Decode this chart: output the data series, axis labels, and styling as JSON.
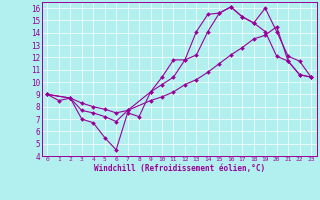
{
  "xlabel": "Windchill (Refroidissement éolien,°C)",
  "xlim": [
    -0.5,
    23.5
  ],
  "ylim": [
    4,
    16.5
  ],
  "xticks": [
    0,
    1,
    2,
    3,
    4,
    5,
    6,
    7,
    8,
    9,
    10,
    11,
    12,
    13,
    14,
    15,
    16,
    17,
    18,
    19,
    20,
    21,
    22,
    23
  ],
  "yticks": [
    4,
    5,
    6,
    7,
    8,
    9,
    10,
    11,
    12,
    13,
    14,
    15,
    16
  ],
  "background_color": "#b2f0f0",
  "line_color": "#990099",
  "line1_x": [
    0,
    1,
    2,
    3,
    4,
    5,
    6,
    7,
    8,
    9,
    10,
    11,
    12,
    13,
    14,
    15,
    16,
    17,
    18,
    19,
    20,
    21,
    22,
    23
  ],
  "line1_y": [
    9.0,
    8.5,
    8.7,
    7.0,
    6.7,
    5.5,
    4.5,
    7.5,
    7.2,
    9.2,
    10.4,
    11.8,
    11.8,
    14.1,
    15.5,
    15.6,
    16.1,
    15.3,
    14.8,
    14.1,
    12.1,
    11.7,
    10.6,
    10.4
  ],
  "line2_x": [
    0,
    2,
    3,
    4,
    5,
    6,
    7,
    9,
    10,
    11,
    12,
    13,
    14,
    15,
    16,
    17,
    18,
    19,
    20,
    21,
    22,
    23
  ],
  "line2_y": [
    9.0,
    8.7,
    7.7,
    7.5,
    7.2,
    6.8,
    7.7,
    9.2,
    9.8,
    10.4,
    11.8,
    12.2,
    14.1,
    15.6,
    16.1,
    15.3,
    14.8,
    16.0,
    14.1,
    12.1,
    11.7,
    10.4
  ],
  "line3_x": [
    0,
    2,
    3,
    4,
    5,
    6,
    7,
    9,
    10,
    11,
    12,
    13,
    14,
    15,
    16,
    17,
    18,
    19,
    20,
    21,
    22,
    23
  ],
  "line3_y": [
    9.0,
    8.7,
    8.3,
    8.0,
    7.8,
    7.5,
    7.7,
    8.5,
    8.8,
    9.2,
    9.8,
    10.2,
    10.8,
    11.5,
    12.2,
    12.8,
    13.5,
    13.8,
    14.5,
    11.7,
    10.6,
    10.4
  ]
}
